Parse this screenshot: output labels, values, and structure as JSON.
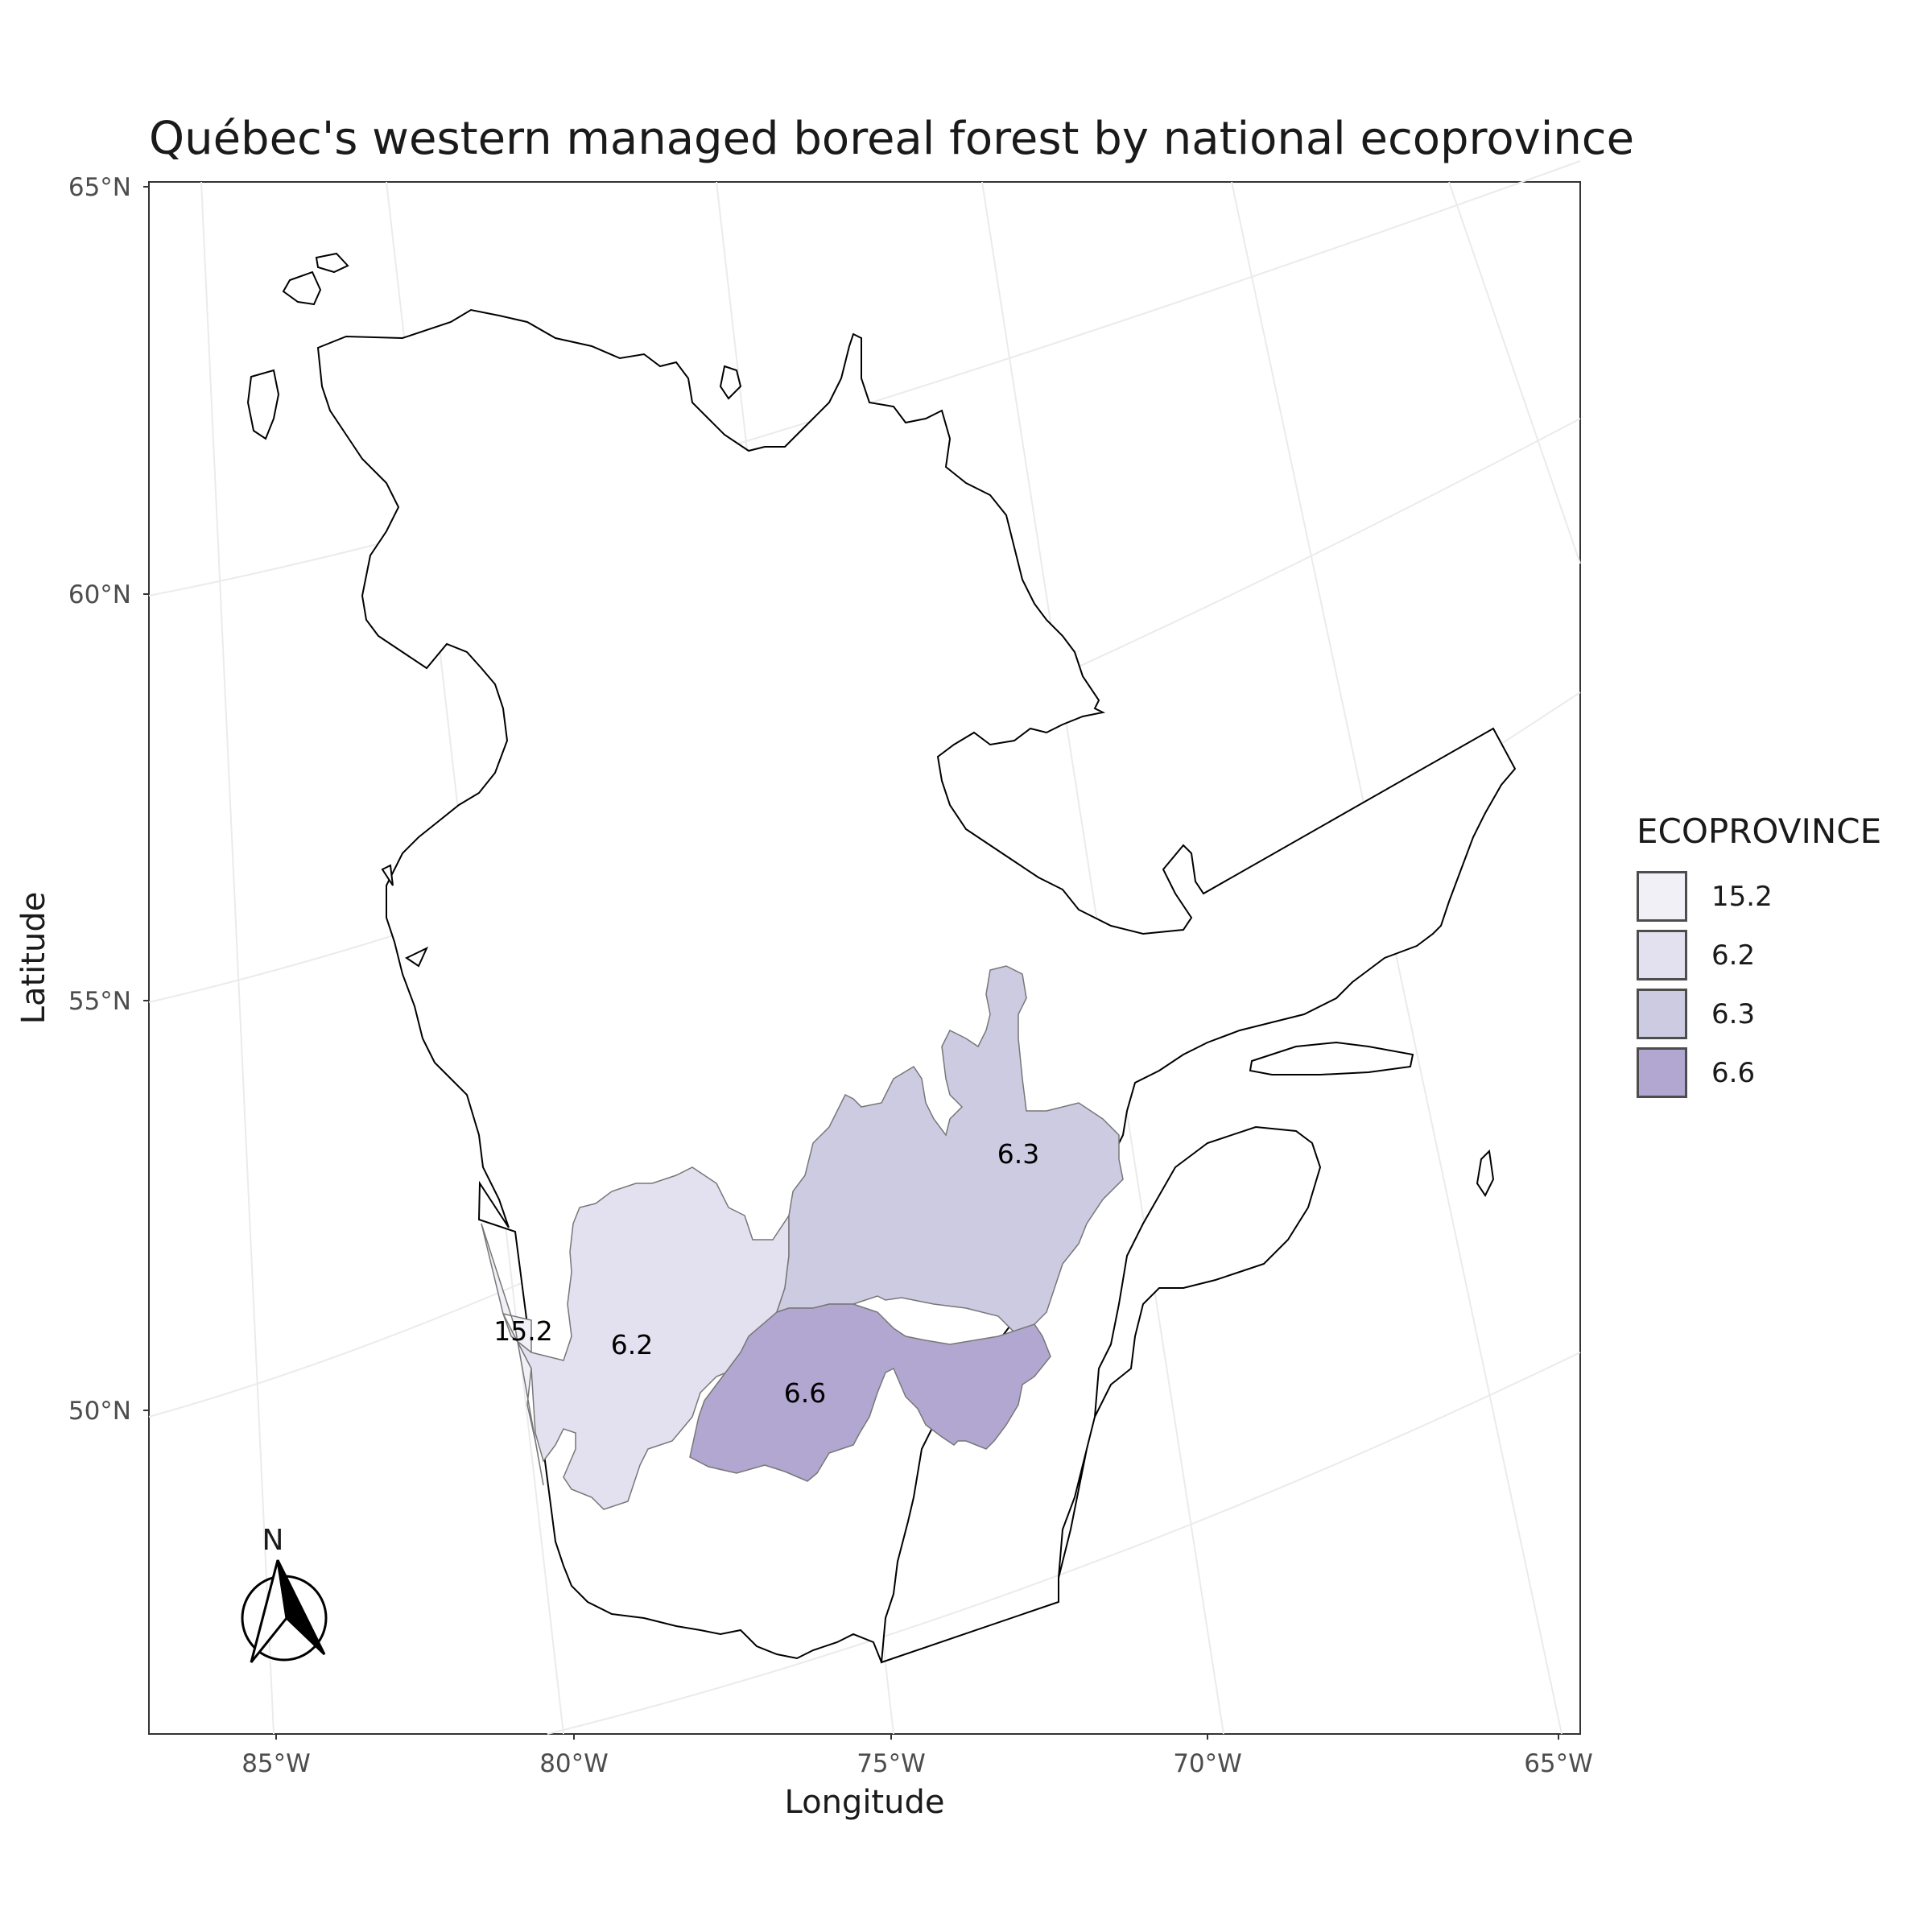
{
  "title": "Québec's western managed boreal forest by national ecoprovince",
  "axes": {
    "x_title": "Longitude",
    "y_title": "Latitude",
    "x_ticks": [
      "85°W",
      "80°W",
      "75°W",
      "70°W",
      "65°W"
    ],
    "y_ticks": [
      "65°N",
      "60°N",
      "55°N",
      "50°N"
    ]
  },
  "north_arrow": {
    "label": "N"
  },
  "legend": {
    "title": "ECOPROVINCE",
    "items": [
      {
        "label": "15.2",
        "color": "#f2f0f7"
      },
      {
        "label": "6.2",
        "color": "#e3e1ef"
      },
      {
        "label": "6.3",
        "color": "#cccbe2"
      },
      {
        "label": "6.6",
        "color": "#b2a7d0"
      }
    ]
  },
  "regions": [
    {
      "label": "15.2",
      "color": "#f2f0f7"
    },
    {
      "label": "6.2",
      "color": "#e3e1ef"
    },
    {
      "label": "6.3",
      "color": "#cccbe2"
    },
    {
      "label": "6.6",
      "color": "#b2a7d0"
    }
  ]
}
